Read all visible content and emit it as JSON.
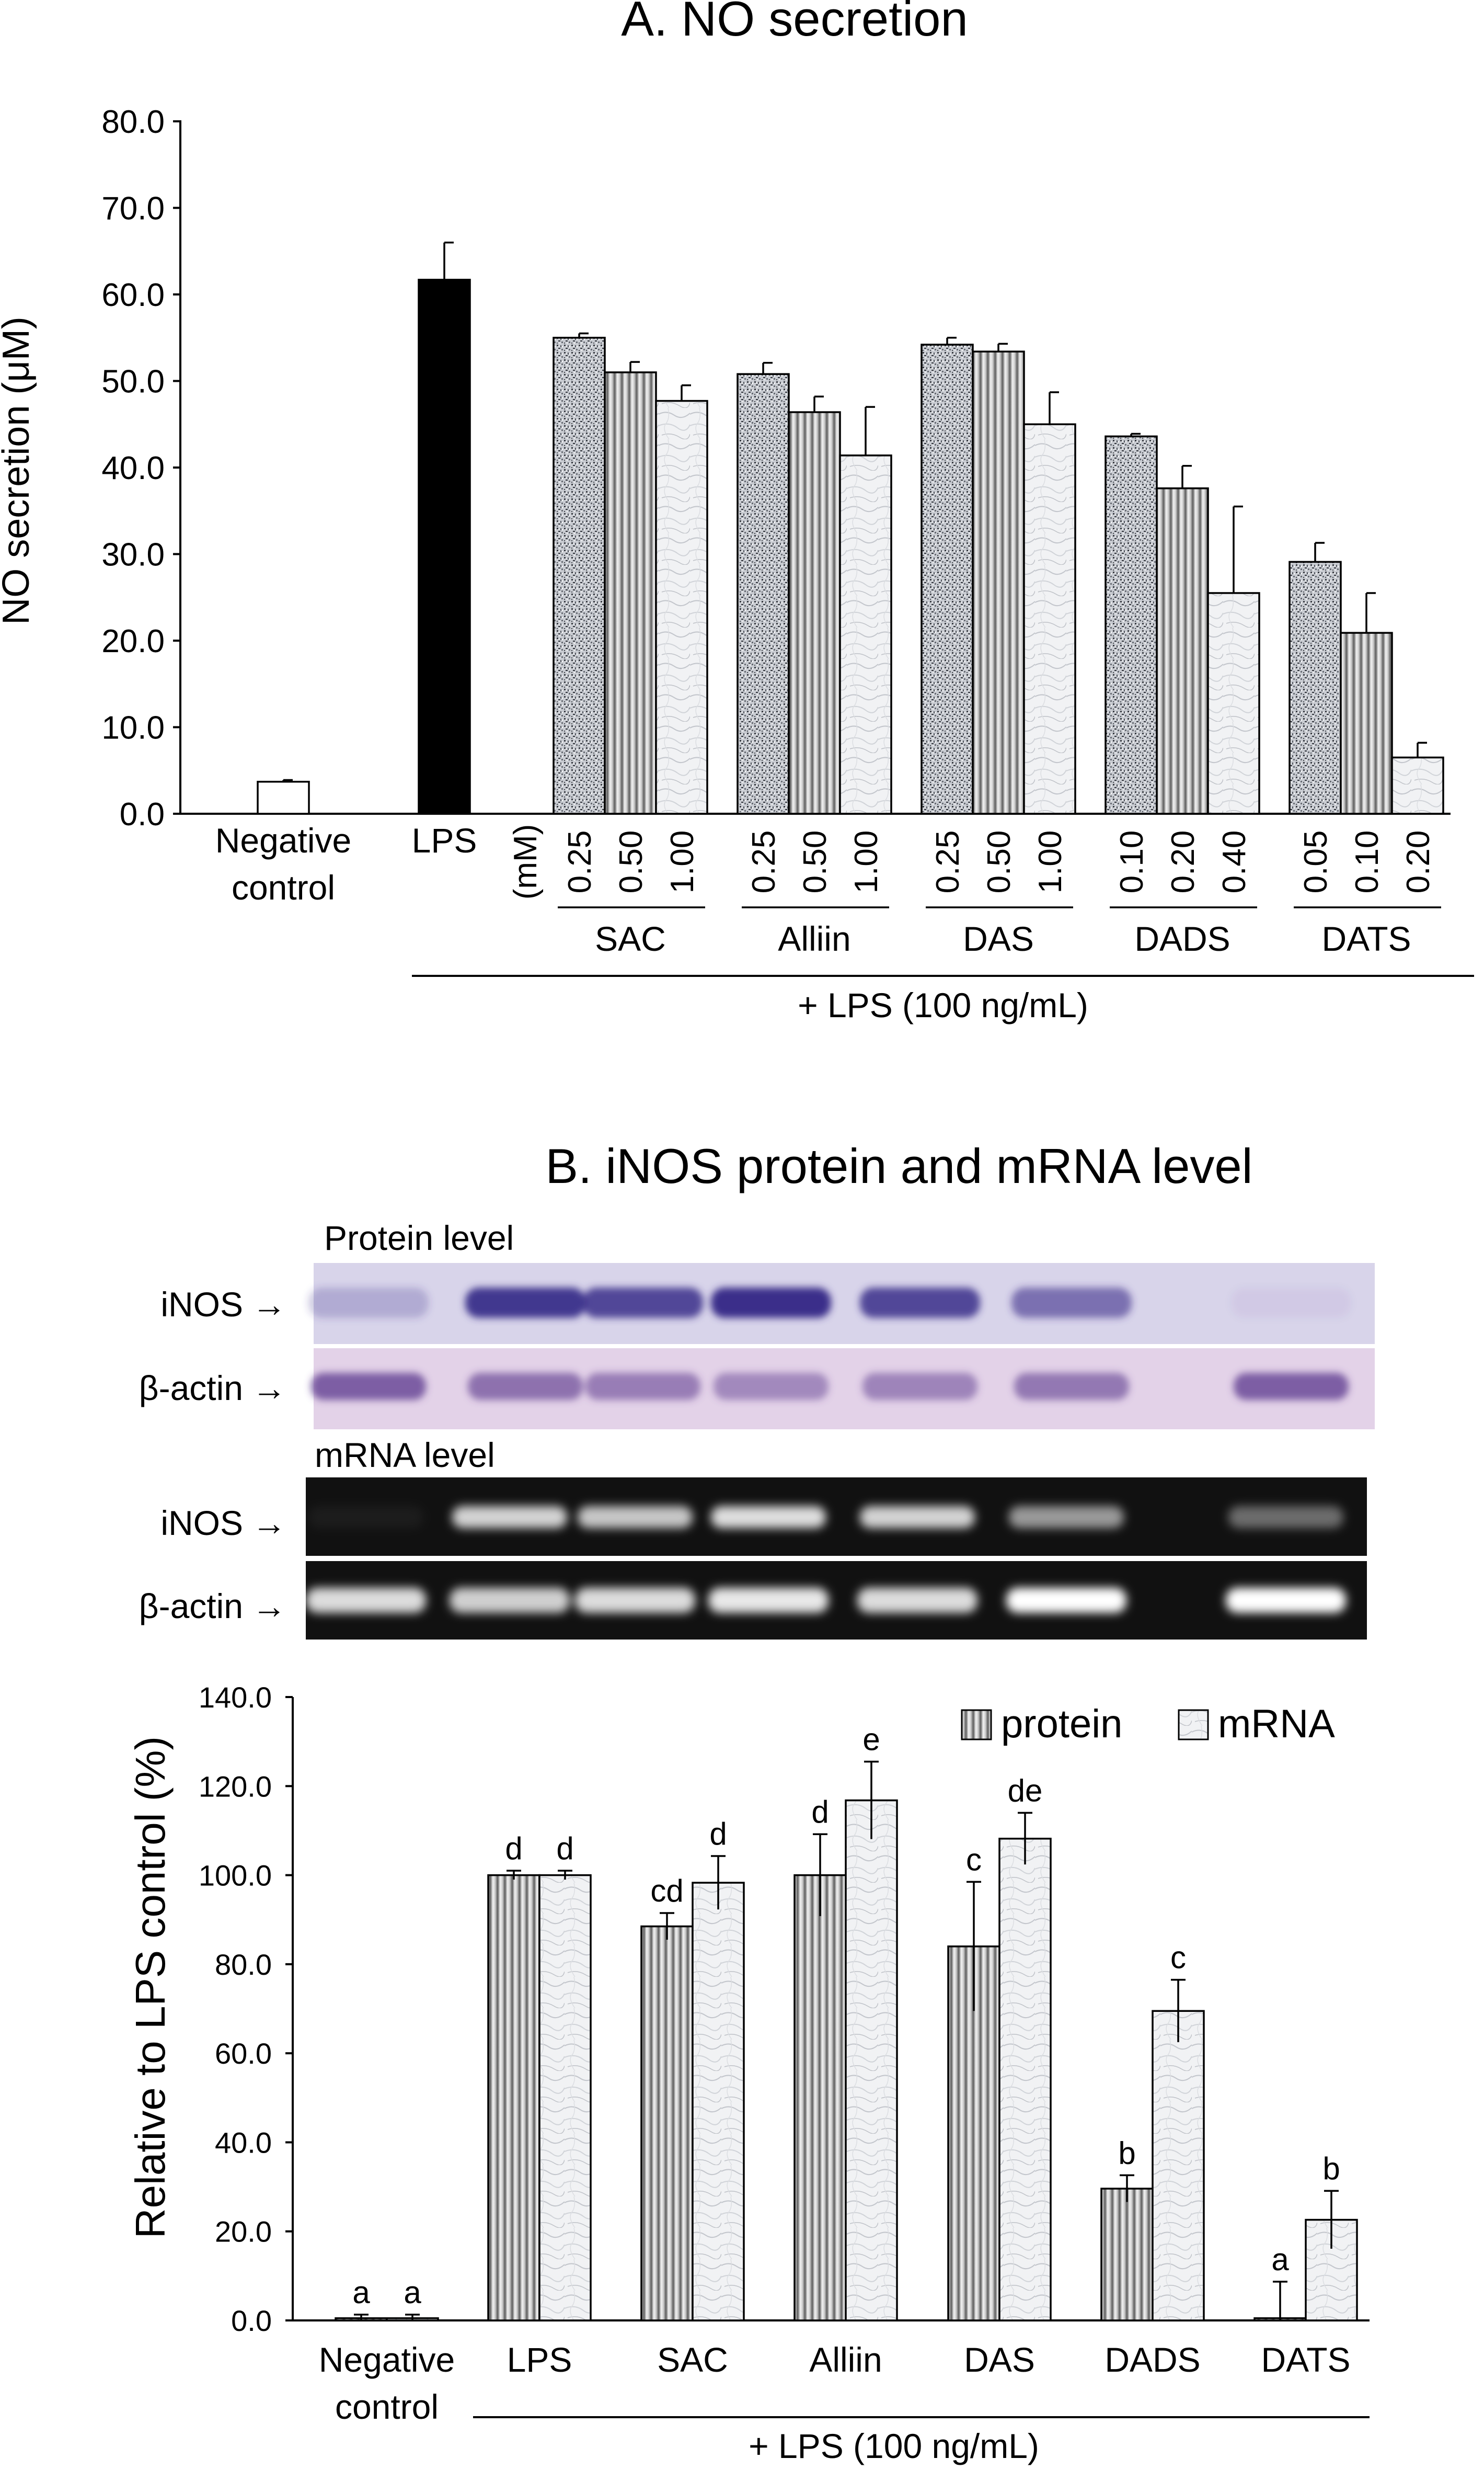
{
  "panel_a": {
    "title": "A.  NO secretion",
    "unit_label": "(mM)",
    "bottom_label": "+ LPS (100 ng/mL)",
    "chart_data": {
      "type": "bar",
      "ylabel": "NO secretion (μM)",
      "ylim": [
        0,
        80
      ],
      "yticks": [
        "0.0",
        "10.0",
        "20.0",
        "30.0",
        "40.0",
        "50.0",
        "60.0",
        "70.0",
        "80.0"
      ],
      "controls": [
        {
          "label": "Negative control",
          "label_lines": [
            "Negative",
            "control"
          ],
          "value": 3.7,
          "error": 0.2,
          "fill": "white"
        },
        {
          "label": "LPS",
          "label_lines": [
            "LPS"
          ],
          "value": 61.7,
          "error": 4.3,
          "fill": "black"
        }
      ],
      "groups": [
        {
          "name": "SAC",
          "doses": [
            "0.25",
            "0.50",
            "1.00"
          ],
          "values": [
            55.0,
            51.0,
            47.7
          ],
          "errors": [
            0.5,
            1.2,
            1.8
          ]
        },
        {
          "name": "Alliin",
          "doses": [
            "0.25",
            "0.50",
            "1.00"
          ],
          "values": [
            50.8,
            46.4,
            41.4
          ],
          "errors": [
            1.3,
            1.8,
            5.6
          ]
        },
        {
          "name": "DAS",
          "doses": [
            "0.25",
            "0.50",
            "1.00"
          ],
          "values": [
            54.2,
            53.4,
            45.0
          ],
          "errors": [
            0.8,
            0.9,
            3.7
          ]
        },
        {
          "name": "DADS",
          "doses": [
            "0.10",
            "0.20",
            "0.40"
          ],
          "values": [
            43.6,
            37.6,
            25.5
          ],
          "errors": [
            0.3,
            2.6,
            10.0
          ]
        },
        {
          "name": "DATS",
          "doses": [
            "0.05",
            "0.10",
            "0.20"
          ],
          "values": [
            29.1,
            20.9,
            6.5
          ],
          "errors": [
            2.2,
            4.6,
            1.7
          ]
        }
      ]
    }
  },
  "panel_b": {
    "title": "B.  iNOS protein and mRNA level",
    "protein_level_label": "Protein level",
    "mrna_level_label": "mRNA level",
    "blot_row_labels": [
      "iNOS",
      "β-actin",
      "iNOS",
      "β-actin"
    ],
    "bottom_label": "+ LPS (100 ng/mL)",
    "chart_data": {
      "type": "bar",
      "ylabel": "Relative to LPS control (%)",
      "ylim": [
        0,
        140
      ],
      "yticks": [
        "0.0",
        "20.0",
        "40.0",
        "60.0",
        "80.0",
        "100.0",
        "120.0",
        "140.0"
      ],
      "categories": [
        "Negative control",
        "LPS",
        "SAC",
        "Alliin",
        "DAS",
        "DADS",
        "DATS"
      ],
      "category_label_lines": [
        [
          "Negative",
          "control"
        ],
        [
          "LPS"
        ],
        [
          "SAC"
        ],
        [
          "Alliin"
        ],
        [
          "DAS"
        ],
        [
          "DADS"
        ],
        [
          "DATS"
        ]
      ],
      "legend_position": "top-right",
      "series": [
        {
          "name": "protein",
          "values": [
            0.5,
            100,
            88.5,
            100,
            84,
            29.6,
            0.5
          ],
          "errors": [
            0.8,
            1.0,
            3.0,
            9.2,
            14.5,
            3.0,
            8.2
          ],
          "letters": [
            "a",
            "d",
            "cd",
            "d",
            "c",
            "b",
            "a"
          ]
        },
        {
          "name": "mRNA",
          "values": [
            0.5,
            100,
            98.3,
            116.8,
            108.2,
            69.5,
            22.6
          ],
          "errors": [
            0.8,
            1.0,
            6.0,
            8.7,
            5.8,
            7.0,
            6.5
          ],
          "letters": [
            "a",
            "d",
            "d",
            "e",
            "de",
            "c",
            "b"
          ]
        }
      ]
    }
  }
}
